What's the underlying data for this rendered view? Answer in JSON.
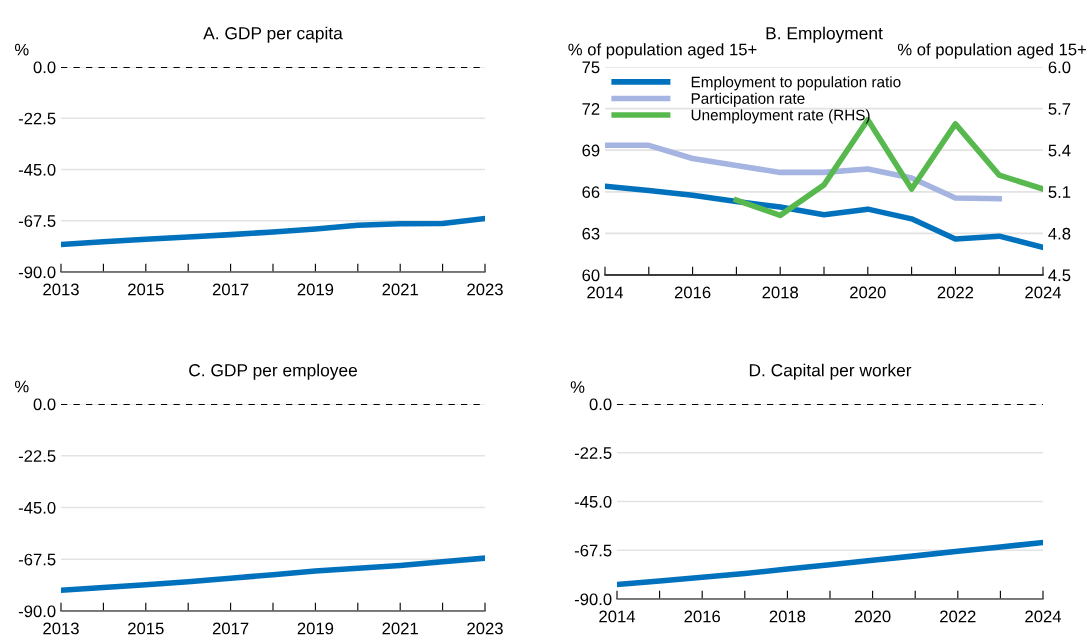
{
  "chart_data": [
    {
      "type": "line",
      "title": "A. GDP per capita",
      "ylabel": "%",
      "x": [
        2013,
        2014,
        2015,
        2016,
        2017,
        2018,
        2019,
        2020,
        2021,
        2022,
        2023
      ],
      "series": [
        {
          "color": "#0071bc",
          "values": [
            -77.9,
            -76.7,
            -75.6,
            -74.6,
            -73.6,
            -72.4,
            -71.1,
            -69.5,
            -68.8,
            -68.7,
            -66.5
          ]
        }
      ],
      "xlim": [
        2013,
        2023
      ],
      "xticks": [
        2013,
        {
          "value": 2014,
          "label": null
        },
        2015,
        {
          "value": 2016,
          "label": null
        },
        2017,
        {
          "value": 2018,
          "label": null
        },
        2019,
        {
          "value": 2020,
          "label": null
        },
        2021,
        {
          "value": 2022,
          "label": null
        },
        2023
      ],
      "ylim": [
        -90,
        0
      ],
      "yticks": [
        {
          "value": -90,
          "label": "-90.0"
        },
        -67.5,
        {
          "value": -45,
          "label": "-45.0"
        },
        -22.5,
        {
          "value": 0,
          "label": "0.0"
        }
      ],
      "ref_lines": [
        {
          "axis": "y",
          "value": 0,
          "color": "#000000",
          "line_style": "dashed"
        }
      ],
      "grid": "y"
    },
    {
      "type": "line",
      "title": "B. Employment",
      "ylabel": "% of population aged 15+",
      "y2label": "% of population aged 15+",
      "x": [
        2014,
        2015,
        2016,
        2017,
        2018,
        2019,
        2020,
        2021,
        2022,
        2023,
        2024
      ],
      "series": [
        {
          "name": "Employment to population ratio",
          "color": "#0071bc",
          "values": [
            66.4,
            66.1,
            65.75,
            65.3,
            64.9,
            64.35,
            64.75,
            64.05,
            62.6,
            62.8,
            62.0
          ]
        },
        {
          "name": "Participation rate",
          "color": "#a5b4e0",
          "values": [
            69.35,
            69.35,
            68.4,
            67.9,
            67.4,
            67.4,
            67.65,
            67.0,
            65.55,
            65.5,
            null
          ]
        },
        {
          "name": "Unemployment rate (RHS)",
          "color": "#57b84e",
          "axis": "y2",
          "values": [
            null,
            null,
            null,
            5.04,
            4.93,
            5.15,
            5.62,
            5.12,
            5.59,
            5.22,
            5.12
          ]
        }
      ],
      "xlim": [
        2014,
        2024
      ],
      "xticks": [
        2014,
        {
          "value": 2015,
          "label": null
        },
        2016,
        {
          "value": 2017,
          "label": null
        },
        2018,
        {
          "value": 2019,
          "label": null
        },
        2020,
        {
          "value": 2021,
          "label": null
        },
        2022,
        {
          "value": 2023,
          "label": null
        },
        2024
      ],
      "ylim": [
        60,
        75
      ],
      "yticks": [
        60,
        63,
        66,
        69,
        72,
        75
      ],
      "y2lim": [
        4.5,
        6.0
      ],
      "y2ticks": [
        4.5,
        4.8,
        5.1,
        5.4,
        5.7,
        {
          "value": 6.0,
          "label": "6.0"
        }
      ],
      "grid": "y",
      "legend": "top left"
    },
    {
      "type": "line",
      "title": "C. GDP per employee",
      "ylabel": "%",
      "x": [
        2013,
        2014,
        2015,
        2016,
        2017,
        2018,
        2019,
        2020,
        2021,
        2022,
        2023
      ],
      "series": [
        {
          "color": "#0071bc",
          "values": [
            -81.0,
            -79.8,
            -78.6,
            -77.3,
            -75.8,
            -74.2,
            -72.6,
            -71.4,
            -70.2,
            -68.6,
            -67.0
          ]
        }
      ],
      "xlim": [
        2013,
        2023
      ],
      "xticks": [
        2013,
        {
          "value": 2014,
          "label": null
        },
        2015,
        {
          "value": 2016,
          "label": null
        },
        2017,
        {
          "value": 2018,
          "label": null
        },
        2019,
        {
          "value": 2020,
          "label": null
        },
        2021,
        {
          "value": 2022,
          "label": null
        },
        2023
      ],
      "ylim": [
        -90,
        0
      ],
      "yticks": [
        {
          "value": -90,
          "label": "-90.0"
        },
        -67.5,
        {
          "value": -45,
          "label": "-45.0"
        },
        -22.5,
        {
          "value": 0,
          "label": "0.0"
        }
      ],
      "ref_lines": [
        {
          "axis": "y",
          "value": 0,
          "color": "#000000",
          "line_style": "dashed"
        }
      ],
      "grid": "y"
    },
    {
      "type": "line",
      "title": "D. Capital per worker",
      "ylabel": "%",
      "x": [
        2014,
        2015,
        2016,
        2017,
        2018,
        2019,
        2020,
        2021,
        2022,
        2023,
        2024
      ],
      "series": [
        {
          "color": "#0071bc",
          "values": [
            -83.3,
            -81.7,
            -80.0,
            -78.2,
            -76.2,
            -74.2,
            -72.1,
            -70.1,
            -68.0,
            -66.0,
            -63.9
          ]
        }
      ],
      "xlim": [
        2014,
        2024
      ],
      "xticks": [
        2014,
        {
          "value": 2015,
          "label": null
        },
        2016,
        {
          "value": 2017,
          "label": null
        },
        2018,
        {
          "value": 2019,
          "label": null
        },
        2020,
        {
          "value": 2021,
          "label": null
        },
        2022,
        {
          "value": 2023,
          "label": null
        },
        2024
      ],
      "ylim": [
        -90,
        0
      ],
      "yticks": [
        {
          "value": -90,
          "label": "-90.0"
        },
        -67.5,
        {
          "value": -45,
          "label": "-45.0"
        },
        -22.5,
        {
          "value": 0,
          "label": "0.0"
        }
      ],
      "ref_lines": [
        {
          "axis": "y",
          "value": 0,
          "color": "#000000",
          "line_style": "dashed"
        }
      ],
      "grid": "y"
    }
  ]
}
